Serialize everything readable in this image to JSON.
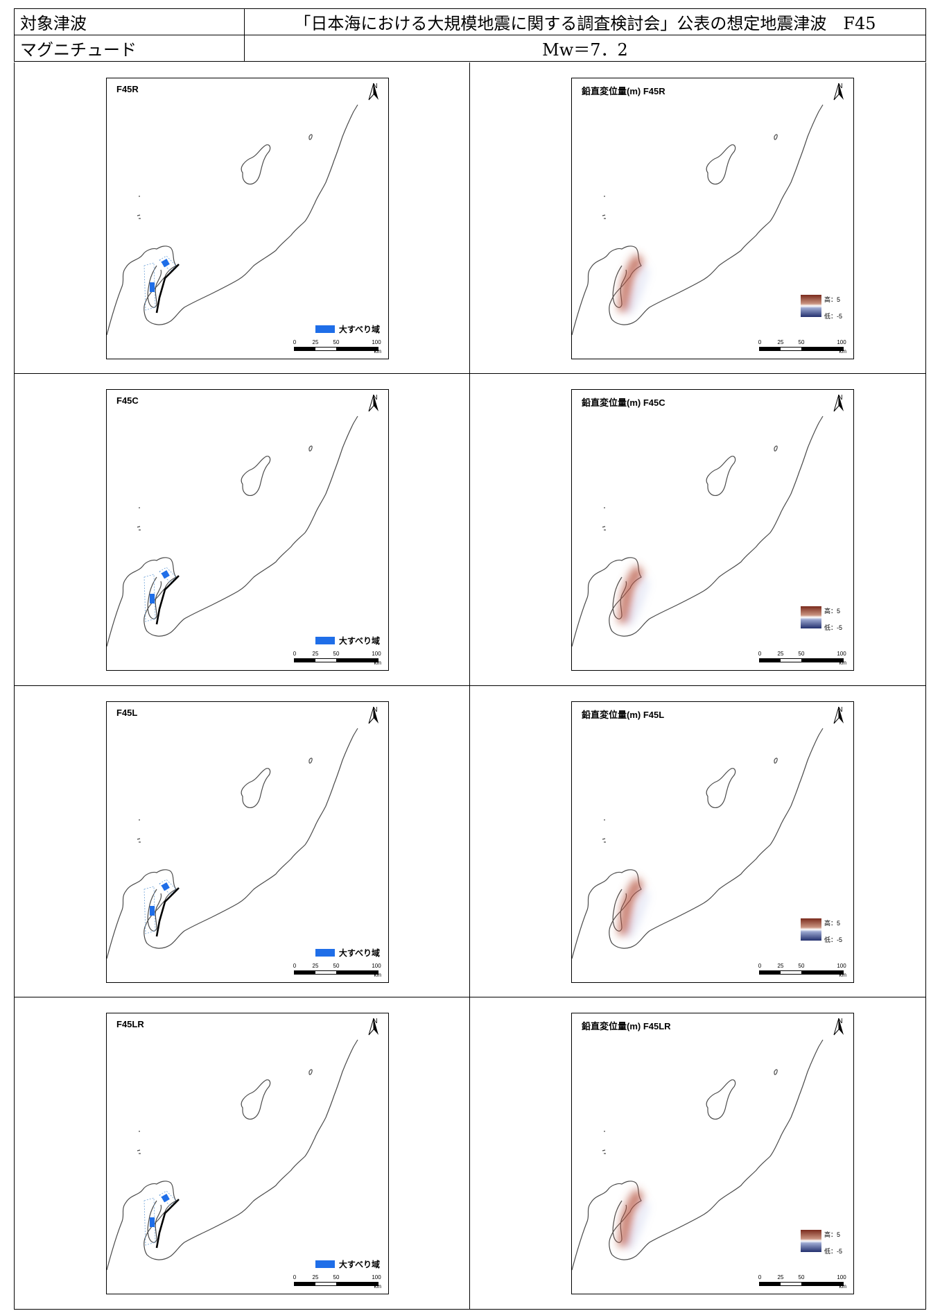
{
  "header": {
    "row1_label": "対象津波",
    "row1_value": "「日本海における大規模地震に関する調査検討会」公表の想定地震津波　F45",
    "row2_label": "マグニチュード",
    "row2_value": "Mw＝7．2"
  },
  "rows": [
    {
      "left_title": "F45R",
      "right_title": "鉛直変位量(m)  F45R"
    },
    {
      "left_title": "F45C",
      "right_title": "鉛直変位量(m)  F45C"
    },
    {
      "left_title": "F45L",
      "right_title": "鉛直変位量(m)  F45L"
    },
    {
      "left_title": "F45LR",
      "right_title": "鉛直変位量(m)  F45LR"
    }
  ],
  "north_label": "N",
  "legend_slip": "大すべり域",
  "legend_high": "高：5",
  "legend_low": "低：-5",
  "scale_labels": [
    "0",
    "25",
    "50",
    "100"
  ],
  "scale_unit": "km",
  "colors": {
    "slip": "#1f6ee8",
    "uplift": "#b5523e",
    "subsidence": "#2b3a87"
  }
}
